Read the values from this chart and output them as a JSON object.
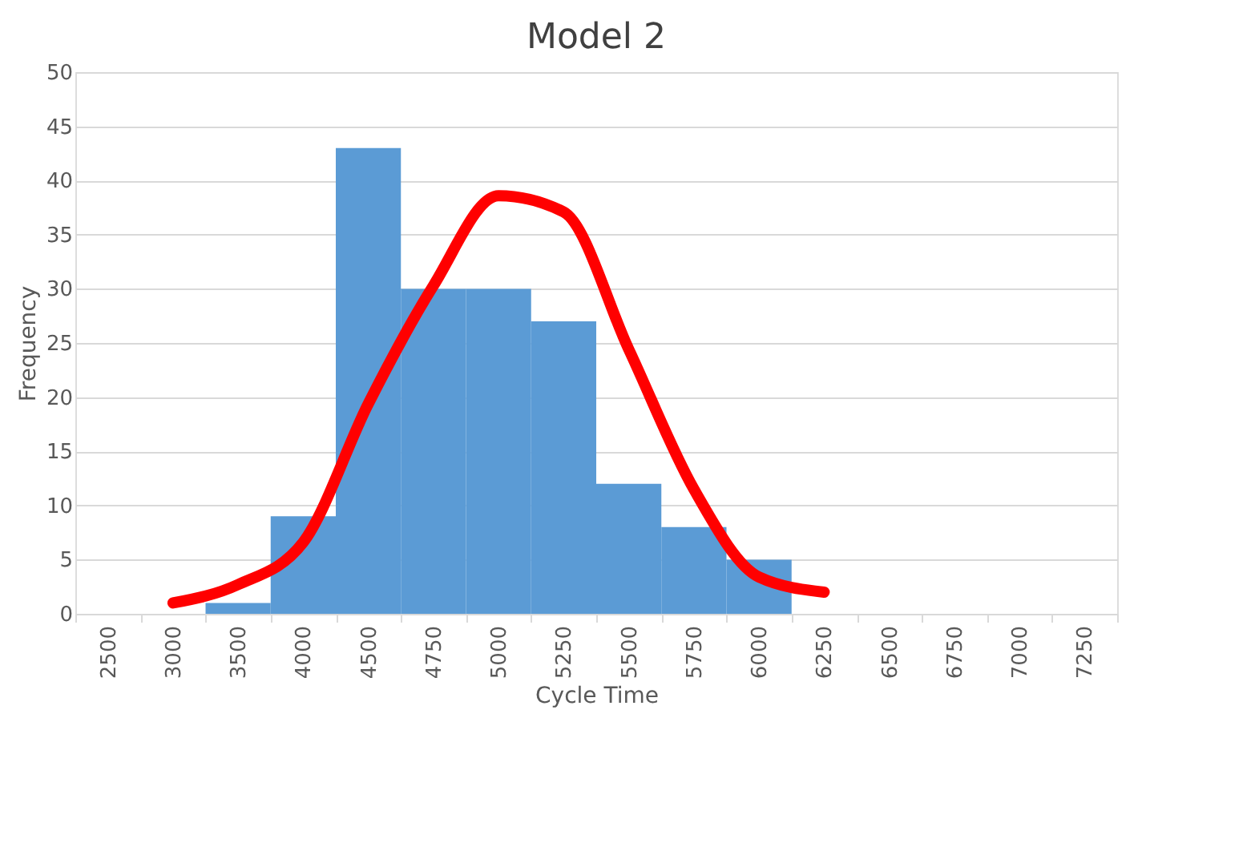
{
  "chart_data": {
    "type": "bar",
    "title": "Model 2",
    "xlabel": "Cycle Time",
    "ylabel": "Frequency",
    "categories": [
      "2500",
      "3000",
      "3500",
      "4000",
      "4500",
      "4750",
      "5000",
      "5250",
      "5500",
      "5750",
      "6000",
      "6250",
      "6500",
      "6750",
      "7000",
      "7250"
    ],
    "series": [
      {
        "color": "#5b9bd5",
        "values": [
          null,
          null,
          1,
          9,
          43,
          30,
          30,
          27,
          12,
          8,
          5,
          null,
          null,
          null,
          null,
          null
        ]
      },
      {
        "type": "line",
        "color": "#ff0000",
        "values": [
          null,
          1,
          2.7,
          6.6,
          19.4,
          30.3,
          38.6,
          37.1,
          24.4,
          11.5,
          3.4,
          2,
          null,
          null,
          null,
          null
        ]
      }
    ],
    "ylim": [
      0,
      50
    ],
    "yticks": [
      0,
      5,
      10,
      15,
      20,
      25,
      30,
      35,
      40,
      45,
      50
    ],
    "grid": "y"
  }
}
